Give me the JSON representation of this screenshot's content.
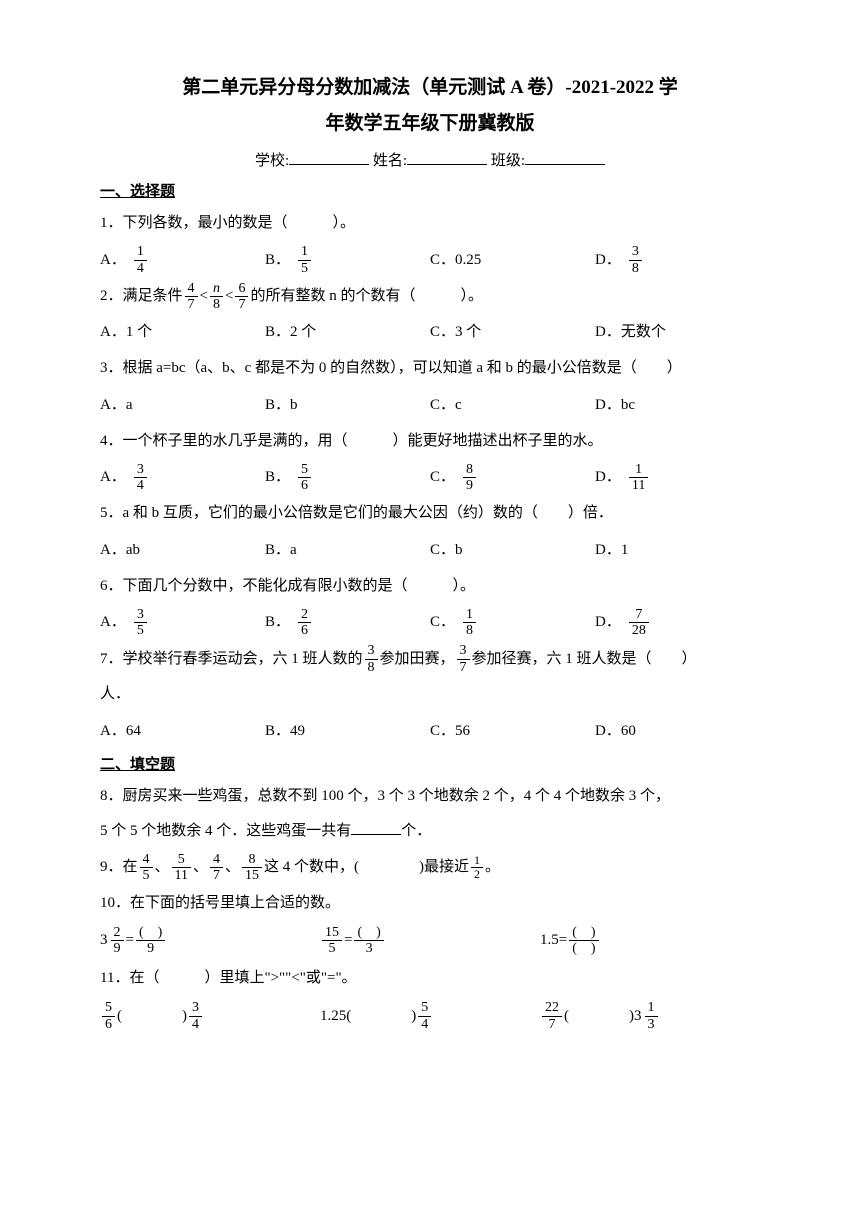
{
  "title_line1": "第二单元异分母分数加减法（单元测试 A 卷）-2021-2022 学",
  "title_line2": "年数学五年级下册冀教版",
  "form": {
    "school_label": "学校:",
    "name_label": "姓名:",
    "class_label": "班级:"
  },
  "section1": "一、选择题",
  "q1": {
    "text": "1．下列各数，最小的数是（　　　）。",
    "A": "A．",
    "Af": {
      "n": "1",
      "d": "4"
    },
    "B": "B．",
    "Bf": {
      "n": "1",
      "d": "5"
    },
    "C": "C．0.25",
    "D": "D．",
    "Df": {
      "n": "3",
      "d": "8"
    }
  },
  "q2": {
    "prefix": "2．满足条件",
    "f1": {
      "n": "4",
      "d": "7"
    },
    "lt1": "<",
    "f2": {
      "n": "n",
      "d": "8"
    },
    "lt2": "<",
    "f3": {
      "n": "6",
      "d": "7"
    },
    "suffix": "的所有整数 n 的个数有（　　　）。",
    "A": "A．1 个",
    "B": "B．2 个",
    "C": "C．3 个",
    "D": "D．无数个"
  },
  "q3": {
    "text": "3．根据 a=bc（a、b、c 都是不为 0 的自然数），可以知道 a 和 b 的最小公倍数是（　　）",
    "A": "A．a",
    "B": "B．b",
    "C": "C．c",
    "D": "D．bc"
  },
  "q4": {
    "text": "4．一个杯子里的水几乎是满的，用（　　　）能更好地描述出杯子里的水。",
    "A": "A．",
    "Af": {
      "n": "3",
      "d": "4"
    },
    "B": "B．",
    "Bf": {
      "n": "5",
      "d": "6"
    },
    "C": "C．",
    "Cf": {
      "n": "8",
      "d": "9"
    },
    "D": "D．",
    "Df": {
      "n": "1",
      "d": "11"
    }
  },
  "q5": {
    "text": "5．a 和 b 互质，它们的最小公倍数是它们的最大公因（约）数的（　　）倍．",
    "A": "A．ab",
    "B": "B．a",
    "C": "C．b",
    "D": "D．1"
  },
  "q6": {
    "text": "6．下面几个分数中，不能化成有限小数的是（　　　）。",
    "A": "A．",
    "Af": {
      "n": "3",
      "d": "5"
    },
    "B": "B．",
    "Bf": {
      "n": "2",
      "d": "6"
    },
    "C": "C．",
    "Cf": {
      "n": "1",
      "d": "8"
    },
    "D": "D．",
    "Df": {
      "n": "7",
      "d": "28"
    }
  },
  "q7": {
    "prefix": "7．学校举行春季运动会，六 1 班人数的",
    "f1": {
      "n": "3",
      "d": "8"
    },
    "mid1": "参加田赛，",
    "f2": {
      "n": "3",
      "d": "7"
    },
    "mid2": "参加径赛，六 1 班人数是（　　）",
    "suffix": "人．",
    "A": "A．64",
    "B": "B．49",
    "C": "C．56",
    "D": "D．60"
  },
  "section2": "二、填空题",
  "q8": {
    "line1": "8．厨房买来一些鸡蛋，总数不到 100 个，3 个 3 个地数余 2 个，4 个 4 个地数余 3 个，",
    "line2a": "5 个 5 个地数余 4 个．这些鸡蛋一共有",
    "line2b": "个．"
  },
  "q9": {
    "prefix": "9．在",
    "f1": {
      "n": "4",
      "d": "5"
    },
    "s1": "、",
    "f2": {
      "n": "5",
      "d": "11"
    },
    "s2": "、",
    "f3": {
      "n": "4",
      "d": "7"
    },
    "s3": "、",
    "f4": {
      "n": "8",
      "d": "15"
    },
    "mid": "这 4 个数中，(　　　　)最接近",
    "f5": {
      "n": "1",
      "d": "2"
    },
    "end": "。"
  },
  "q10": {
    "text": "10．在下面的括号里填上合适的数。",
    "e1_whole": "3",
    "e1_fn": "2",
    "e1_fd": "9",
    "eq": "=",
    "e1_rn": "(　)",
    "e1_rd": "9",
    "e2_ln": "15",
    "e2_ld": "5",
    "e2_rn": "(　)",
    "e2_rd": "3",
    "e3_l": "1.5",
    "e3_rn": "(　)",
    "e3_rd": "(　)"
  },
  "q11": {
    "text": "11．在（　　　）里填上\">\"\"<\"或\"=\"。",
    "f1": {
      "n": "5",
      "d": "6"
    },
    "p1": "(　　　　)",
    "f2": {
      "n": "3",
      "d": "4"
    },
    "v3": "1.25",
    "p2": "(　　　　)",
    "f4": {
      "n": "5",
      "d": "4"
    },
    "f5": {
      "n": "22",
      "d": "7"
    },
    "p3": "(　　　　)",
    "m6_w": "3",
    "m6_n": "1",
    "m6_d": "3"
  }
}
